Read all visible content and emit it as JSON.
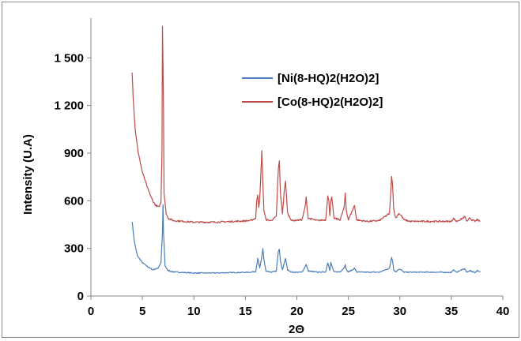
{
  "chart_data": {
    "type": "line",
    "title": "",
    "xlabel": "2Θ",
    "ylabel": "Intensity  (U.A)",
    "xlim": [
      0,
      40
    ],
    "ylim": [
      0,
      1750
    ],
    "x_ticks": [
      0,
      5,
      10,
      15,
      20,
      25,
      30,
      35,
      40
    ],
    "x_tick_labels": [
      "0",
      "5",
      "10",
      "15",
      "20",
      "25",
      "30",
      "35",
      "40"
    ],
    "y_ticks": [
      0,
      300,
      600,
      900,
      1200,
      1500
    ],
    "y_tick_labels": [
      "0",
      "300",
      "600",
      "900",
      "1 200",
      "1 500"
    ],
    "grid": false,
    "legend_position": "top-center",
    "series": [
      {
        "name": "[Ni(8-HQ)2(H2O)2]",
        "color": "#4a7ebb",
        "x": [
          4.0,
          4.2,
          4.5,
          5.0,
          5.5,
          6.0,
          6.5,
          6.8,
          6.95,
          7.0,
          7.05,
          7.2,
          7.5,
          8,
          9,
          10,
          12,
          14,
          15.5,
          16.0,
          16.2,
          16.4,
          16.6,
          16.7,
          16.8,
          17.0,
          17.5,
          18.0,
          18.2,
          18.3,
          18.4,
          18.6,
          18.8,
          18.9,
          19.1,
          19.5,
          20.5,
          20.8,
          20.9,
          21.1,
          22,
          22.8,
          23.0,
          23.1,
          23.2,
          23.3,
          23.4,
          23.6,
          24.2,
          24.6,
          24.7,
          24.8,
          25.0,
          25.4,
          25.6,
          25.8,
          26.2,
          27,
          28,
          29.0,
          29.2,
          29.3,
          29.4,
          29.6,
          29.9,
          30.1,
          30.4,
          31,
          32,
          33,
          34,
          35,
          35.2,
          35.5,
          36,
          36.3,
          36.5,
          36.8,
          37.0,
          37.3,
          37.5,
          37.8
        ],
        "values": [
          470,
          350,
          255,
          210,
          185,
          165,
          175,
          210,
          400,
          575,
          400,
          190,
          160,
          152,
          148,
          145,
          145,
          148,
          150,
          155,
          235,
          175,
          250,
          300,
          230,
          155,
          150,
          158,
          280,
          295,
          220,
          165,
          215,
          235,
          165,
          150,
          150,
          185,
          200,
          158,
          150,
          152,
          210,
          190,
          160,
          210,
          190,
          152,
          152,
          180,
          200,
          165,
          152,
          165,
          175,
          152,
          150,
          150,
          150,
          175,
          245,
          220,
          165,
          152,
          170,
          165,
          150,
          150,
          150,
          150,
          150,
          148,
          165,
          150,
          165,
          170,
          150,
          160,
          155,
          148,
          160,
          150
        ]
      },
      {
        "name": "[Co(8-HQ)2(H2O)2]",
        "color": "#be4b48",
        "x": [
          4.0,
          4.1,
          4.3,
          4.6,
          5.0,
          5.5,
          6.0,
          6.3,
          6.6,
          6.8,
          6.9,
          6.95,
          7.0,
          7.05,
          7.1,
          7.3,
          7.5,
          8,
          9,
          10,
          12,
          14,
          15.5,
          16.0,
          16.1,
          16.2,
          16.3,
          16.4,
          16.5,
          16.6,
          16.7,
          16.8,
          17.0,
          17.5,
          18.0,
          18.2,
          18.3,
          18.4,
          18.6,
          18.8,
          18.9,
          19.1,
          19.5,
          20.5,
          20.8,
          20.9,
          21.1,
          22,
          22.8,
          23.0,
          23.1,
          23.2,
          23.3,
          23.4,
          23.6,
          24.2,
          24.6,
          24.7,
          24.8,
          25.0,
          25.4,
          25.6,
          25.8,
          26.2,
          27,
          28,
          29.0,
          29.2,
          29.3,
          29.4,
          29.6,
          29.9,
          30.1,
          30.4,
          31,
          32,
          33,
          34,
          35,
          35.2,
          35.5,
          36,
          36.3,
          36.5,
          36.8,
          37.0,
          37.3,
          37.5,
          37.8
        ],
        "values": [
          1410,
          1250,
          1050,
          900,
          780,
          680,
          600,
          570,
          560,
          590,
          900,
          1700,
          1450,
          1200,
          650,
          520,
          490,
          475,
          470,
          465,
          465,
          470,
          475,
          490,
          600,
          640,
          560,
          620,
          760,
          920,
          700,
          540,
          480,
          475,
          500,
          800,
          850,
          650,
          520,
          680,
          720,
          520,
          475,
          480,
          560,
          620,
          490,
          475,
          480,
          630,
          600,
          510,
          600,
          620,
          490,
          480,
          560,
          650,
          540,
          480,
          540,
          570,
          480,
          475,
          470,
          475,
          520,
          750,
          700,
          550,
          490,
          520,
          510,
          480,
          470,
          470,
          470,
          470,
          470,
          490,
          470,
          485,
          500,
          470,
          490,
          480,
          470,
          480,
          470
        ]
      }
    ]
  }
}
